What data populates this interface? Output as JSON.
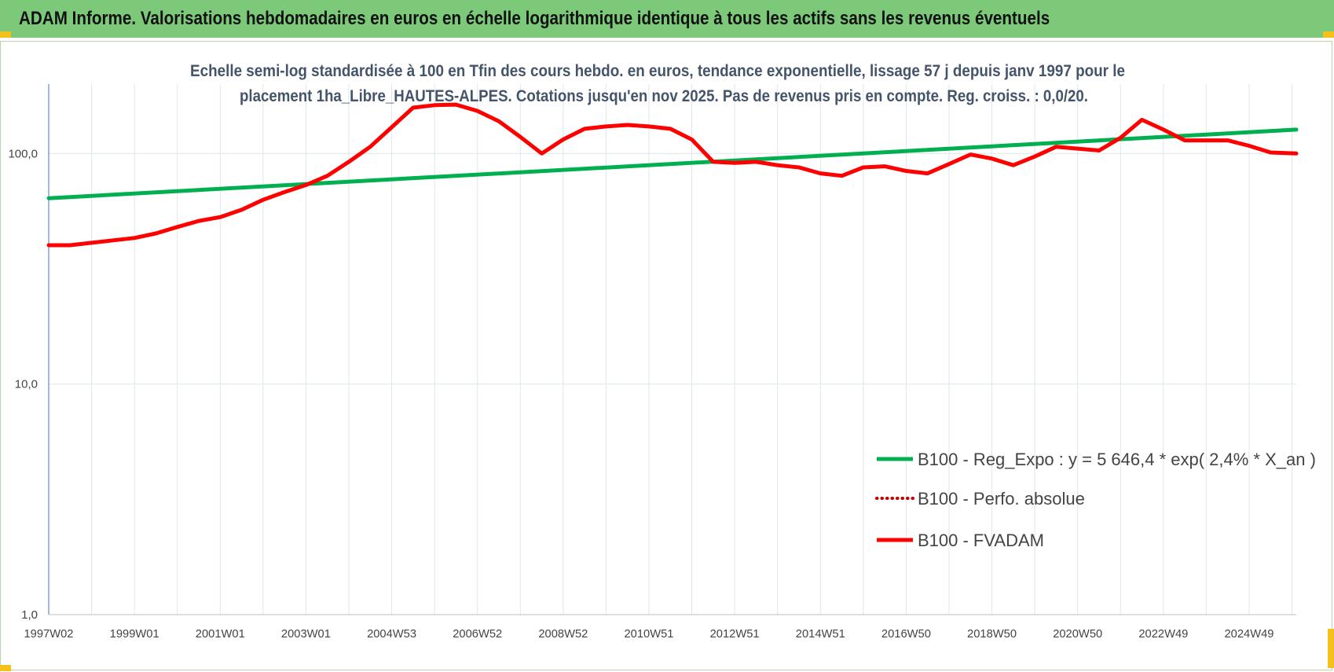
{
  "header": {
    "title": "ADAM Informe. Valorisations hebdomadaires en euros en échelle logarithmique identique à tous les actifs sans les revenus éventuels"
  },
  "colors": {
    "header_bg": "#7dc97a",
    "trend": "#00b050",
    "fvadam": "#ff0000",
    "perf": "#c00000",
    "subtitle": "#44546a",
    "grid": "#dde6ee",
    "corner": "#f4c01b"
  },
  "chart_data": {
    "type": "line",
    "title_lines": [
      "Echelle semi-log standardisée à 100 en Tfin des cours hebdo. en euros, tendance exponentielle, lissage 57 j depuis janv 1997 pour le",
      "placement 1ha_Libre_HAUTES-ALPES. Cotations jusqu'en nov 2025. Pas de revenus pris en compte. Reg. croiss. : 0,0/20."
    ],
    "y_scale": "log",
    "ylim": [
      1,
      200
    ],
    "y_ticks": [
      {
        "value": 1,
        "label": "1,0"
      },
      {
        "value": 10,
        "label": "10,0"
      },
      {
        "value": 100,
        "label": "100,0"
      }
    ],
    "xlim": [
      1997.0,
      2026.1
    ],
    "x_ticks": [
      {
        "x": 1997.0,
        "label": "1997W02"
      },
      {
        "x": 1999.0,
        "label": "1999W01"
      },
      {
        "x": 2001.0,
        "label": "2001W01"
      },
      {
        "x": 2003.0,
        "label": "2003W01"
      },
      {
        "x": 2005.0,
        "label": "2004W53"
      },
      {
        "x": 2007.0,
        "label": "2006W52"
      },
      {
        "x": 2009.0,
        "label": "2008W52"
      },
      {
        "x": 2011.0,
        "label": "2010W51"
      },
      {
        "x": 2013.0,
        "label": "2012W51"
      },
      {
        "x": 2015.0,
        "label": "2014W51"
      },
      {
        "x": 2017.0,
        "label": "2016W50"
      },
      {
        "x": 2019.0,
        "label": "2018W50"
      },
      {
        "x": 2021.0,
        "label": "2020W50"
      },
      {
        "x": 2023.0,
        "label": "2022W49"
      },
      {
        "x": 2025.0,
        "label": "2024W49"
      }
    ],
    "grid": true,
    "legend_position": "bottom-right",
    "series": [
      {
        "name": "B100 - Reg_Expo : y = 5 646,4 * exp( 2,4% *  X_an )",
        "style": "solid-green",
        "x": [
          1997.0,
          2026.1
        ],
        "y": [
          64,
          127
        ]
      },
      {
        "name": "B100 - Perfo. absolue",
        "style": "dotted-red",
        "x": [],
        "y": []
      },
      {
        "name": "B100 - FVADAM",
        "style": "solid-red",
        "x": [
          1997.0,
          1997.5,
          1998.0,
          1998.5,
          1999.0,
          1999.5,
          2000.0,
          2000.5,
          2001.0,
          2001.5,
          2002.0,
          2002.5,
          2003.0,
          2003.5,
          2004.0,
          2004.5,
          2005.0,
          2005.5,
          2006.0,
          2006.5,
          2007.0,
          2007.5,
          2008.0,
          2008.5,
          2009.0,
          2009.5,
          2010.0,
          2010.5,
          2011.0,
          2011.5,
          2012.0,
          2012.5,
          2013.0,
          2013.5,
          2014.0,
          2014.5,
          2015.0,
          2015.5,
          2016.0,
          2016.5,
          2017.0,
          2017.5,
          2018.0,
          2018.5,
          2019.0,
          2019.5,
          2020.0,
          2020.5,
          2021.0,
          2021.5,
          2022.0,
          2022.5,
          2023.0,
          2023.5,
          2024.0,
          2024.5,
          2025.0,
          2025.5,
          2026.1
        ],
        "y": [
          40,
          40,
          41,
          42,
          43,
          45,
          48,
          51,
          53,
          57,
          63,
          68,
          73,
          80,
          92,
          107,
          130,
          158,
          162,
          163,
          153,
          138,
          118,
          100,
          115,
          128,
          131,
          133,
          131,
          128,
          115,
          92,
          91,
          92,
          89,
          87,
          82,
          80,
          87,
          88,
          84,
          82,
          90,
          99,
          95,
          89,
          97,
          107,
          105,
          103,
          117,
          140,
          127,
          114,
          114,
          114,
          108,
          101,
          100
        ]
      }
    ]
  }
}
